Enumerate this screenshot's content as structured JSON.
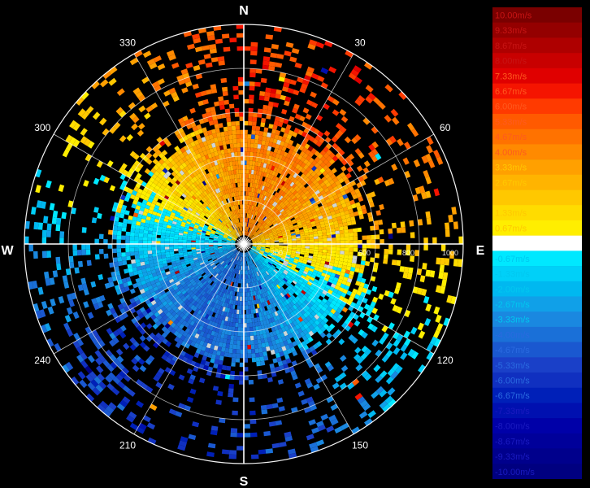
{
  "chart_data": {
    "type": "heatmap",
    "subtype": "polar-radar-velocity-ppi",
    "cardinal_labels": {
      "north": "N",
      "east": "E",
      "south": "S",
      "west": "W"
    },
    "azimuth_labels": [
      "30",
      "60",
      "120",
      "150",
      "210",
      "240",
      "300",
      "330"
    ],
    "azimuth_values": [
      30,
      60,
      120,
      150,
      210,
      240,
      300,
      330
    ],
    "range_ring_labels": [
      "200",
      "600",
      "800",
      "1000"
    ],
    "range_ring_values": [
      200,
      600,
      800,
      1000
    ],
    "range_max": 1000,
    "velocity_range": [
      -10,
      10
    ],
    "colorbar": {
      "labels": [
        "10.00m/s",
        "9.33m/s",
        "8.67m/s",
        "8.00m/s",
        "7.33m/s",
        "6.67m/s",
        "6.00m/s",
        "5.33m/s",
        "4.67m/s",
        "4.00m/s",
        "3.33m/s",
        "2.67m/s",
        "2.00m/s",
        "1.33m/s",
        "0.67m/s",
        "0.00m/s",
        "-0.67m/s",
        "-1.33m/s",
        "-2.00m/s",
        "-2.67m/s",
        "-3.33m/s",
        "-4.00m/s",
        "-4.67m/s",
        "-5.33m/s",
        "-6.00m/s",
        "-6.67m/s",
        "-7.33m/s",
        "-8.00m/s",
        "-8.67m/s",
        "-9.33m/s",
        "-10.00m/s"
      ],
      "colors": [
        "#7a0000",
        "#940000",
        "#ae0000",
        "#c80000",
        "#e00000",
        "#f51400",
        "#ff3a00",
        "#ff5a00",
        "#ff7200",
        "#ff8a00",
        "#ffa000",
        "#ffb400",
        "#ffc800",
        "#ffdc00",
        "#ffee00",
        "#ffffff",
        "#00e8ff",
        "#00d0f8",
        "#00b8f0",
        "#10a0e8",
        "#1a88e0",
        "#1a70d8",
        "#1a58d0",
        "#1a40c8",
        "#1030c0",
        "#0020b8",
        "#0010b0",
        "#0000a8",
        "#00009a",
        "#00008c",
        "#000080"
      ]
    }
  }
}
